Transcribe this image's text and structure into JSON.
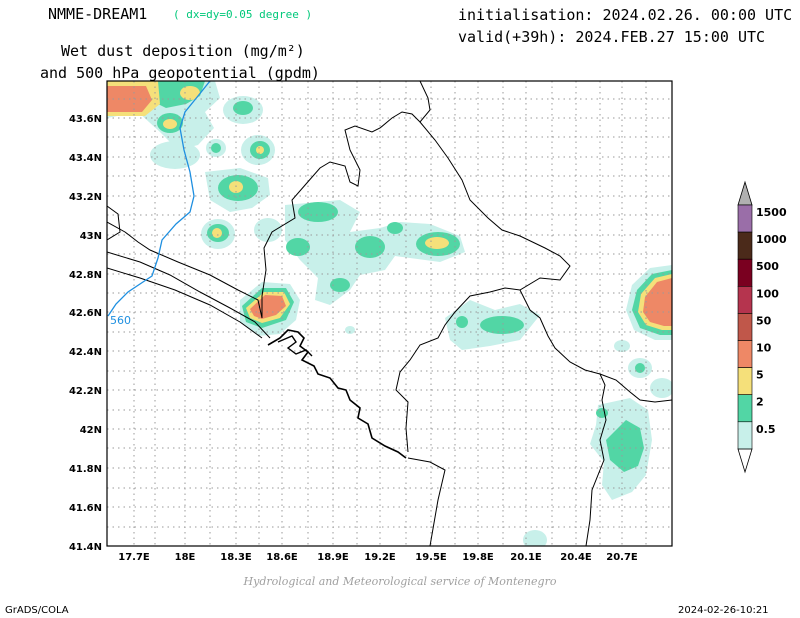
{
  "header": {
    "model_name": "NMME-DREAM1",
    "resolution": "( dx=dy=0.05 degree )",
    "title_line1": "Wet dust deposition (mg/m²)",
    "title_line2": "and 500 hPa geopotential (gpdm)",
    "init": "initialisation: 2024.02.26. 00:00 UTC",
    "valid": "valid(+39h): 2024.FEB.27 15:00 UTC"
  },
  "credit": "Hydrological and Meteorological service of Montenegro",
  "footer": {
    "left": "GrADS/COLA",
    "right": "2024-02-26-10:21"
  },
  "axes": {
    "lon_labels": [
      "17.7E",
      "18E",
      "18.3E",
      "18.6E",
      "18.9E",
      "19.2E",
      "19.5E",
      "19.8E",
      "20.1E",
      "20.4E",
      "20.7E"
    ],
    "lat_labels": [
      "43.6N",
      "43.4N",
      "43.2N",
      "43N",
      "42.8N",
      "42.6N",
      "42.4N",
      "42.2N",
      "42N",
      "41.8N",
      "41.6N",
      "41.4N"
    ]
  },
  "contour_label": "560",
  "legend": {
    "labels": [
      "1500",
      "1000",
      "500",
      "100",
      "50",
      "10",
      "5",
      "2",
      "0.5"
    ],
    "colors": [
      "#9a6ea8",
      "#4b2a1a",
      "#7a0020",
      "#b5344e",
      "#c0574a",
      "#ee8866",
      "#f5e07a",
      "#52d6a5",
      "#c8f0ea"
    ]
  },
  "palette": {
    "level1": "#c8f0ea",
    "level2": "#52d6a5",
    "level3": "#f5e07a",
    "level4": "#ee8866",
    "contour": "#1e8fe0"
  }
}
